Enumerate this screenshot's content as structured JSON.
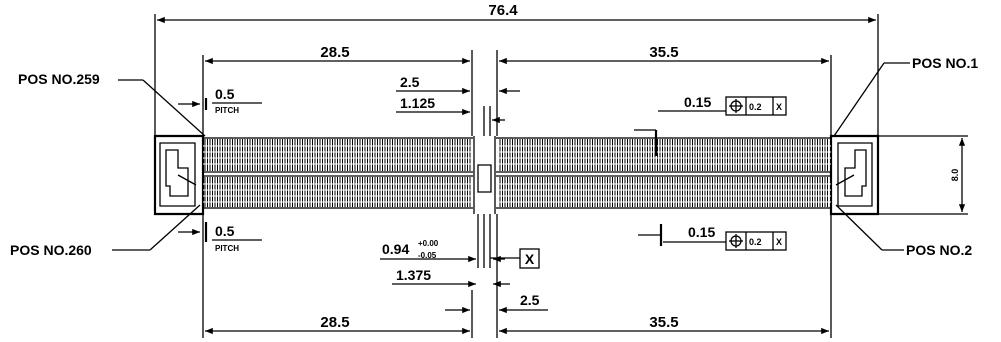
{
  "dimensions": {
    "overall_length": "76.4",
    "top_left_span": "28.5",
    "top_right_span": "35.5",
    "bottom_left_span": "28.5",
    "bottom_right_span": "35.5",
    "top_center_offset": "2.5",
    "top_center_offset_alt": "1.125",
    "bottom_center_offset": "2.5",
    "bottom_center_offset_alt": "1.375",
    "height": "8.0",
    "pitch_top": "0.5",
    "pitch_bottom": "0.5",
    "pitch_label": "PITCH",
    "slot_width": "0.94",
    "slot_tol_plus": "+0.00",
    "slot_tol_minus": "-0.05"
  },
  "positions": {
    "top_left": "POS NO.259",
    "top_right": "POS NO.1",
    "bottom_left": "POS NO.260",
    "bottom_right": "POS NO.2"
  },
  "tolerances": {
    "top": {
      "value": "0.15",
      "zone": "0.2",
      "datum": "X"
    },
    "bottom": {
      "value": "0.15",
      "zone": "0.2",
      "datum": "X"
    }
  },
  "datum_label": "X"
}
